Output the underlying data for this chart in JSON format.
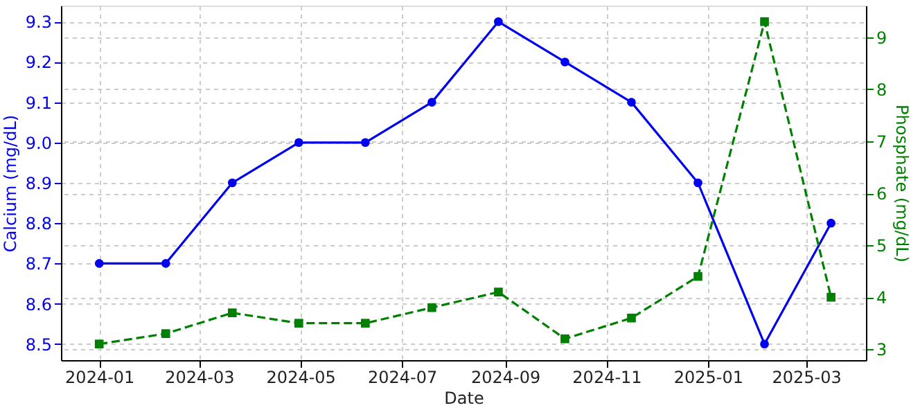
{
  "chart_data": {
    "type": "line",
    "xlabel": "Date",
    "ylabel": "Calcium (mg/dL)",
    "y2label": "Phosphate (mg/dL)",
    "x": [
      "2024-01-01",
      "2024-02-10",
      "2024-03-21",
      "2024-04-30",
      "2024-06-09",
      "2024-07-19",
      "2024-08-28",
      "2024-10-07",
      "2024-11-16",
      "2024-12-26",
      "2025-02-04",
      "2025-03-16"
    ],
    "series": [
      {
        "color": "#0000ee",
        "marker": "circle",
        "line_style": "solid",
        "values": [
          8.7,
          8.7,
          8.9,
          9.0,
          9.0,
          9.1,
          9.3,
          9.2,
          9.1,
          8.9,
          8.5,
          8.8
        ]
      },
      {
        "color": "#008000",
        "marker": "square",
        "line_style": "dashed",
        "axis": "y2",
        "values": [
          3.1,
          3.3,
          3.7,
          3.5,
          3.5,
          3.8,
          4.1,
          3.2,
          3.6,
          4.4,
          9.3,
          4.0
        ]
      }
    ],
    "xlim": [
      "2023-12-09",
      "2025-04-06"
    ],
    "xticks": [
      {
        "value": "2024-01-01",
        "label": "2024-01"
      },
      {
        "value": "2024-03-01",
        "label": "2024-03"
      },
      {
        "value": "2024-05-01",
        "label": "2024-05"
      },
      {
        "value": "2024-07-01",
        "label": "2024-07"
      },
      {
        "value": "2024-09-01",
        "label": "2024-09"
      },
      {
        "value": "2024-11-01",
        "label": "2024-11"
      },
      {
        "value": "2025-01-01",
        "label": "2025-01"
      },
      {
        "value": "2025-03-01",
        "label": "2025-03"
      }
    ],
    "ylim": [
      8.46,
      9.34
    ],
    "yticks": [
      8.5,
      8.6,
      8.7,
      8.8,
      8.9,
      {
        "value": 9,
        "label": "9.0"
      },
      9.1,
      9.2,
      9.3
    ],
    "y2lim": [
      2.79,
      9.61
    ],
    "y2ticks": [
      3,
      4,
      5,
      6,
      7,
      8,
      9
    ],
    "grid": true
  }
}
